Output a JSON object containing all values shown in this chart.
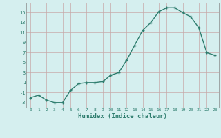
{
  "title": "",
  "xlabel": "Humidex (Indice chaleur)",
  "ylabel": "",
  "x_values": [
    0,
    1,
    2,
    3,
    4,
    5,
    6,
    7,
    8,
    9,
    10,
    11,
    12,
    13,
    14,
    15,
    16,
    17,
    18,
    19,
    20,
    21,
    22,
    23
  ],
  "y_values": [
    -2,
    -1.5,
    -2.5,
    -3,
    -3,
    -0.5,
    0.8,
    1,
    1,
    1.2,
    2.5,
    3,
    5.5,
    8.5,
    11.5,
    13,
    15.2,
    16,
    16,
    15,
    14.2,
    12,
    7,
    6.5
  ],
  "line_color": "#2e7d6e",
  "marker": "+",
  "marker_color": "#2e7d6e",
  "bg_color": "#d5efef",
  "grid_color": "#b8d4d4",
  "tick_label_color": "#2e7d6e",
  "xlabel_color": "#2e7d6e",
  "ylim": [
    -4,
    17
  ],
  "yticks": [
    -3,
    -1,
    1,
    3,
    5,
    7,
    9,
    11,
    13,
    15
  ],
  "xlim": [
    -0.5,
    23.5
  ],
  "xticks": [
    0,
    1,
    2,
    3,
    4,
    5,
    6,
    7,
    8,
    9,
    10,
    11,
    12,
    13,
    14,
    15,
    16,
    17,
    18,
    19,
    20,
    21,
    22,
    23
  ],
  "linewidth": 1.0,
  "markersize": 3.5
}
